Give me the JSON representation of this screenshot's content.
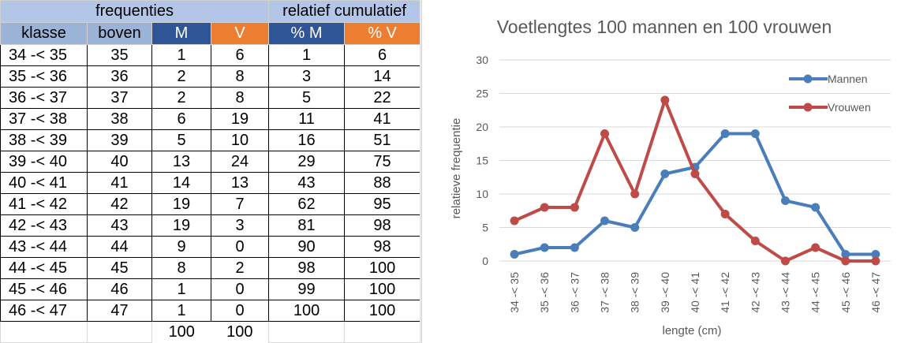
{
  "table": {
    "group_headers": {
      "frequencies": "frequenties",
      "cumulative": "relatief cumulatief"
    },
    "col_headers": [
      "klasse",
      "boven",
      "M",
      "V",
      "% M",
      "% V"
    ],
    "rows": [
      [
        "34 -< 35",
        "35",
        "1",
        "6",
        "1",
        "6"
      ],
      [
        "35 -< 36",
        "36",
        "2",
        "8",
        "3",
        "14"
      ],
      [
        "36 -< 37",
        "37",
        "2",
        "8",
        "5",
        "22"
      ],
      [
        "37 -< 38",
        "38",
        "6",
        "19",
        "11",
        "41"
      ],
      [
        "38 -< 39",
        "39",
        "5",
        "10",
        "16",
        "51"
      ],
      [
        "39 -< 40",
        "40",
        "13",
        "24",
        "29",
        "75"
      ],
      [
        "40 -< 41",
        "41",
        "14",
        "13",
        "43",
        "88"
      ],
      [
        "41 -< 42",
        "42",
        "19",
        "7",
        "62",
        "95"
      ],
      [
        "42 -< 43",
        "43",
        "19",
        "3",
        "81",
        "98"
      ],
      [
        "43 -< 44",
        "44",
        "9",
        "0",
        "90",
        "98"
      ],
      [
        "44 -< 45",
        "45",
        "8",
        "2",
        "98",
        "100"
      ],
      [
        "45 -< 46",
        "46",
        "1",
        "0",
        "99",
        "100"
      ],
      [
        "46 -< 47",
        "47",
        "1",
        "0",
        "100",
        "100"
      ]
    ],
    "totals": {
      "M": "100",
      "V": "100"
    },
    "colors": {
      "header_light": "#b4c6e7",
      "header_blue": "#2f5597",
      "header_orange": "#ed7d31"
    }
  },
  "chart_data": {
    "type": "line",
    "title": "Voetlengtes 100 mannen en  100 vrouwen",
    "xlabel": "lengte (cm)",
    "ylabel": "relatieve frequentie",
    "ylim": [
      0,
      30
    ],
    "yticks": [
      "0",
      "5",
      "10",
      "15",
      "20",
      "25",
      "30"
    ],
    "categories": [
      "34 -< 35",
      "35 -< 36",
      "36 -< 37",
      "37 -< 38",
      "38 -< 39",
      "39 -< 40",
      "40 -< 41",
      "41 -< 42",
      "42 -< 43",
      "43 -< 44",
      "44 -< 45",
      "45 -< 46",
      "46 -< 47"
    ],
    "series": [
      {
        "name": "Mannen",
        "color": "#4a7ebb",
        "values": [
          1,
          2,
          2,
          6,
          5,
          13,
          14,
          19,
          19,
          9,
          8,
          1,
          1
        ]
      },
      {
        "name": "Vrouwen",
        "color": "#be4b48",
        "values": [
          6,
          8,
          8,
          19,
          10,
          24,
          13,
          7,
          3,
          0,
          2,
          0,
          0
        ]
      }
    ],
    "grid": true,
    "legend": "top-right"
  }
}
